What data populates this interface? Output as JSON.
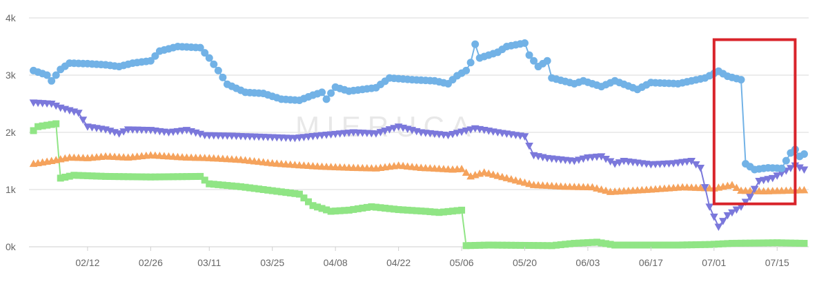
{
  "chart_data": {
    "type": "line",
    "title": "",
    "xlabel": "",
    "ylabel": "",
    "x_start": "2019-01-30",
    "x_end": "2019-07-22",
    "x_ticks": [
      {
        "date": "2019-02-12",
        "label": "02/12"
      },
      {
        "date": "2019-02-26",
        "label": "02/26"
      },
      {
        "date": "2019-03-11",
        "label": "03/11"
      },
      {
        "date": "2019-03-25",
        "label": "03/25"
      },
      {
        "date": "2019-04-08",
        "label": "04/08"
      },
      {
        "date": "2019-04-22",
        "label": "04/22"
      },
      {
        "date": "2019-05-06",
        "label": "05/06"
      },
      {
        "date": "2019-05-20",
        "label": "05/20"
      },
      {
        "date": "2019-06-03",
        "label": "06/03"
      },
      {
        "date": "2019-06-17",
        "label": "06/17"
      },
      {
        "date": "2019-07-01",
        "label": "07/01"
      },
      {
        "date": "2019-07-15",
        "label": "07/15"
      }
    ],
    "ylim": [
      0,
      4000
    ],
    "y_ticks": [
      {
        "value": 0,
        "label": "0k"
      },
      {
        "value": 1000,
        "label": "1k"
      },
      {
        "value": 2000,
        "label": "2k"
      },
      {
        "value": 3000,
        "label": "3k"
      },
      {
        "value": 4000,
        "label": "4k"
      }
    ],
    "grid": true,
    "watermark": "MIERUCA",
    "highlight": {
      "x_from": "2019-07-01",
      "x_to": "2019-07-19",
      "y_from": 750,
      "y_to": 3620,
      "color": "#d9242b"
    },
    "series": [
      {
        "color": "#72b2e6",
        "marker": "circle",
        "points": [
          [
            "2019-01-31",
            3080
          ],
          [
            "2019-02-03",
            3000
          ],
          [
            "2019-02-04",
            2900
          ],
          [
            "2019-02-06",
            3100
          ],
          [
            "2019-02-08",
            3210
          ],
          [
            "2019-02-12",
            3200
          ],
          [
            "2019-02-16",
            3180
          ],
          [
            "2019-02-19",
            3150
          ],
          [
            "2019-02-22",
            3210
          ],
          [
            "2019-02-26",
            3250
          ],
          [
            "2019-02-28",
            3420
          ],
          [
            "2019-03-04",
            3500
          ],
          [
            "2019-03-09",
            3480
          ],
          [
            "2019-03-11",
            3300
          ],
          [
            "2019-03-13",
            3080
          ],
          [
            "2019-03-15",
            2840
          ],
          [
            "2019-03-19",
            2700
          ],
          [
            "2019-03-23",
            2680
          ],
          [
            "2019-03-27",
            2580
          ],
          [
            "2019-03-31",
            2560
          ],
          [
            "2019-04-03",
            2650
          ],
          [
            "2019-04-05",
            2700
          ],
          [
            "2019-04-06",
            2580
          ],
          [
            "2019-04-08",
            2790
          ],
          [
            "2019-04-11",
            2720
          ],
          [
            "2019-04-17",
            2780
          ],
          [
            "2019-04-20",
            2950
          ],
          [
            "2019-04-25",
            2920
          ],
          [
            "2019-04-30",
            2900
          ],
          [
            "2019-05-03",
            2850
          ],
          [
            "2019-05-05",
            2990
          ],
          [
            "2019-05-07",
            3080
          ],
          [
            "2019-05-08",
            3220
          ],
          [
            "2019-05-09",
            3540
          ],
          [
            "2019-05-10",
            3300
          ],
          [
            "2019-05-14",
            3400
          ],
          [
            "2019-05-16",
            3500
          ],
          [
            "2019-05-20",
            3560
          ],
          [
            "2019-05-21",
            3350
          ],
          [
            "2019-05-23",
            3150
          ],
          [
            "2019-05-25",
            3250
          ],
          [
            "2019-05-26",
            2950
          ],
          [
            "2019-05-31",
            2850
          ],
          [
            "2019-06-02",
            2900
          ],
          [
            "2019-06-06",
            2800
          ],
          [
            "2019-06-09",
            2900
          ],
          [
            "2019-06-14",
            2750
          ],
          [
            "2019-06-17",
            2870
          ],
          [
            "2019-06-23",
            2850
          ],
          [
            "2019-06-29",
            2950
          ],
          [
            "2019-07-02",
            3070
          ],
          [
            "2019-07-04",
            2980
          ],
          [
            "2019-07-07",
            2920
          ],
          [
            "2019-07-08",
            1450
          ],
          [
            "2019-07-10",
            1350
          ],
          [
            "2019-07-13",
            1380
          ],
          [
            "2019-07-16",
            1370
          ],
          [
            "2019-07-18",
            1640
          ],
          [
            "2019-07-19",
            1700
          ],
          [
            "2019-07-20",
            1580
          ],
          [
            "2019-07-21",
            1620
          ]
        ]
      },
      {
        "color": "#7b78db",
        "marker": "triangle-down",
        "points": [
          [
            "2019-01-31",
            2520
          ],
          [
            "2019-02-04",
            2500
          ],
          [
            "2019-02-06",
            2430
          ],
          [
            "2019-02-10",
            2340
          ],
          [
            "2019-02-12",
            2100
          ],
          [
            "2019-02-16",
            2050
          ],
          [
            "2019-02-19",
            1980
          ],
          [
            "2019-02-21",
            2050
          ],
          [
            "2019-02-26",
            2040
          ],
          [
            "2019-03-02",
            2000
          ],
          [
            "2019-03-06",
            2040
          ],
          [
            "2019-03-10",
            1950
          ],
          [
            "2019-03-16",
            1940
          ],
          [
            "2019-03-23",
            1920
          ],
          [
            "2019-03-30",
            1900
          ],
          [
            "2019-04-05",
            1950
          ],
          [
            "2019-04-12",
            2000
          ],
          [
            "2019-04-17",
            1980
          ],
          [
            "2019-04-22",
            2100
          ],
          [
            "2019-04-27",
            2000
          ],
          [
            "2019-05-03",
            1950
          ],
          [
            "2019-05-09",
            2070
          ],
          [
            "2019-05-14",
            2000
          ],
          [
            "2019-05-20",
            1930
          ],
          [
            "2019-05-22",
            1600
          ],
          [
            "2019-05-25",
            1550
          ],
          [
            "2019-05-31",
            1500
          ],
          [
            "2019-06-03",
            1560
          ],
          [
            "2019-06-06",
            1580
          ],
          [
            "2019-06-09",
            1450
          ],
          [
            "2019-06-11",
            1500
          ],
          [
            "2019-06-17",
            1440
          ],
          [
            "2019-06-22",
            1460
          ],
          [
            "2019-06-26",
            1500
          ],
          [
            "2019-06-28",
            1380
          ],
          [
            "2019-06-30",
            700
          ],
          [
            "2019-07-02",
            350
          ],
          [
            "2019-07-04",
            550
          ],
          [
            "2019-07-07",
            700
          ],
          [
            "2019-07-09",
            870
          ],
          [
            "2019-07-11",
            1150
          ],
          [
            "2019-07-14",
            1200
          ],
          [
            "2019-07-17",
            1330
          ],
          [
            "2019-07-19",
            1420
          ],
          [
            "2019-07-21",
            1350
          ]
        ]
      },
      {
        "color": "#f5a35d",
        "marker": "triangle-up",
        "points": [
          [
            "2019-01-31",
            1450
          ],
          [
            "2019-02-04",
            1500
          ],
          [
            "2019-02-08",
            1560
          ],
          [
            "2019-02-12",
            1550
          ],
          [
            "2019-02-16",
            1580
          ],
          [
            "2019-02-21",
            1560
          ],
          [
            "2019-02-26",
            1600
          ],
          [
            "2019-03-06",
            1560
          ],
          [
            "2019-03-11",
            1550
          ],
          [
            "2019-03-18",
            1520
          ],
          [
            "2019-03-25",
            1460
          ],
          [
            "2019-03-30",
            1430
          ],
          [
            "2019-04-05",
            1400
          ],
          [
            "2019-04-12",
            1380
          ],
          [
            "2019-04-17",
            1370
          ],
          [
            "2019-04-22",
            1420
          ],
          [
            "2019-04-27",
            1380
          ],
          [
            "2019-05-04",
            1350
          ],
          [
            "2019-05-06",
            1360
          ],
          [
            "2019-05-08",
            1230
          ],
          [
            "2019-05-11",
            1300
          ],
          [
            "2019-05-17",
            1180
          ],
          [
            "2019-05-22",
            1080
          ],
          [
            "2019-05-29",
            1050
          ],
          [
            "2019-06-04",
            1040
          ],
          [
            "2019-06-08",
            960
          ],
          [
            "2019-06-17",
            1000
          ],
          [
            "2019-06-24",
            1040
          ],
          [
            "2019-07-01",
            1020
          ],
          [
            "2019-07-05",
            1080
          ],
          [
            "2019-07-07",
            980
          ],
          [
            "2019-07-12",
            970
          ],
          [
            "2019-07-17",
            980
          ],
          [
            "2019-07-21",
            990
          ]
        ]
      },
      {
        "color": "#90e585",
        "marker": "square",
        "points": [
          [
            "2019-01-31",
            2030
          ],
          [
            "2019-02-01",
            2100
          ],
          [
            "2019-02-05",
            2150
          ],
          [
            "2019-02-06",
            1200
          ],
          [
            "2019-02-09",
            1250
          ],
          [
            "2019-02-16",
            1230
          ],
          [
            "2019-02-26",
            1220
          ],
          [
            "2019-03-09",
            1230
          ],
          [
            "2019-03-11",
            1100
          ],
          [
            "2019-03-18",
            1050
          ],
          [
            "2019-03-25",
            980
          ],
          [
            "2019-03-31",
            920
          ],
          [
            "2019-04-03",
            720
          ],
          [
            "2019-04-07",
            620
          ],
          [
            "2019-04-11",
            640
          ],
          [
            "2019-04-16",
            700
          ],
          [
            "2019-04-22",
            650
          ],
          [
            "2019-04-28",
            620
          ],
          [
            "2019-05-01",
            600
          ],
          [
            "2019-05-06",
            640
          ],
          [
            "2019-05-07",
            20
          ],
          [
            "2019-05-12",
            30
          ],
          [
            "2019-05-26",
            20
          ],
          [
            "2019-05-31",
            60
          ],
          [
            "2019-06-05",
            80
          ],
          [
            "2019-06-09",
            30
          ],
          [
            "2019-06-23",
            30
          ],
          [
            "2019-06-30",
            40
          ],
          [
            "2019-07-05",
            60
          ],
          [
            "2019-07-15",
            70
          ],
          [
            "2019-07-21",
            60
          ]
        ]
      }
    ]
  }
}
